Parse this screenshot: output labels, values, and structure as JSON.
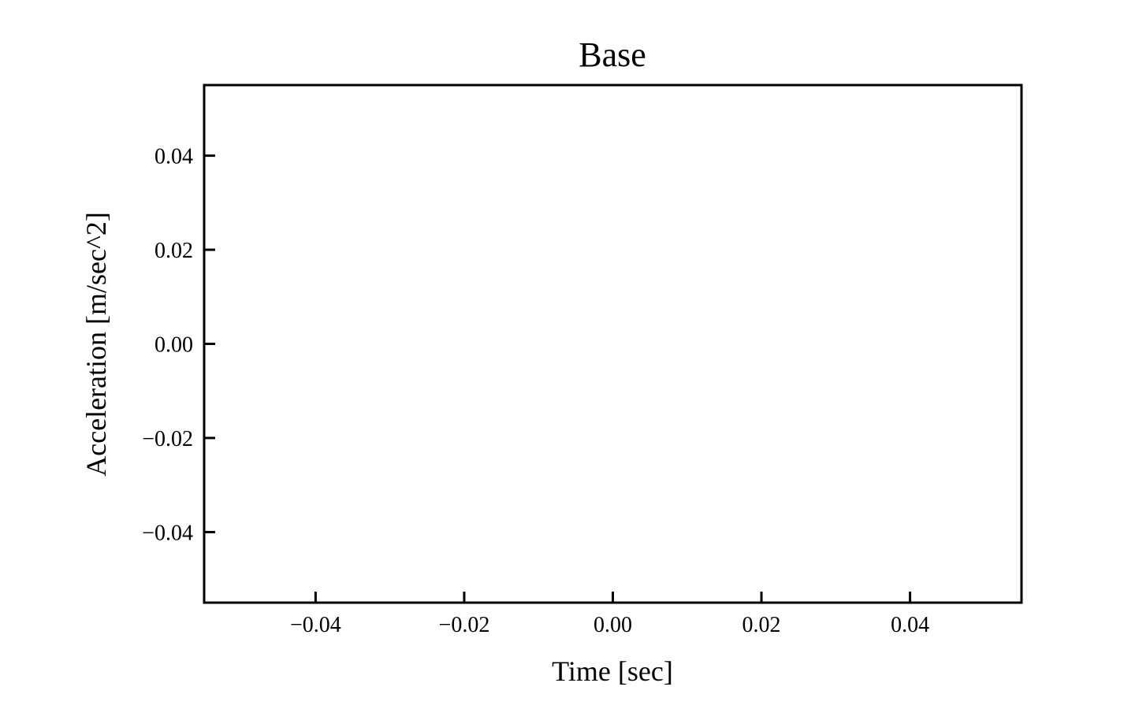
{
  "chart_data": {
    "type": "line",
    "title": "Base",
    "xlabel": "Time [sec]",
    "ylabel": "Acceleration [m/sec^2]",
    "xlim": [
      -0.055,
      0.055
    ],
    "ylim": [
      -0.055,
      0.055
    ],
    "x_ticks": [
      -0.04,
      -0.02,
      0.0,
      0.02,
      0.04
    ],
    "x_tick_labels": [
      "−0.04",
      "−0.02",
      "0.00",
      "0.02",
      "0.04"
    ],
    "y_ticks": [
      0.04,
      0.02,
      0.0,
      -0.02,
      -0.04
    ],
    "y_tick_labels": [
      "0.04",
      "0.02",
      "0.00",
      "−0.02",
      "−0.04"
    ],
    "series": [],
    "grid": false,
    "tick_direction": "in",
    "colors": {
      "axes": "#000000",
      "background": "#ffffff"
    }
  }
}
